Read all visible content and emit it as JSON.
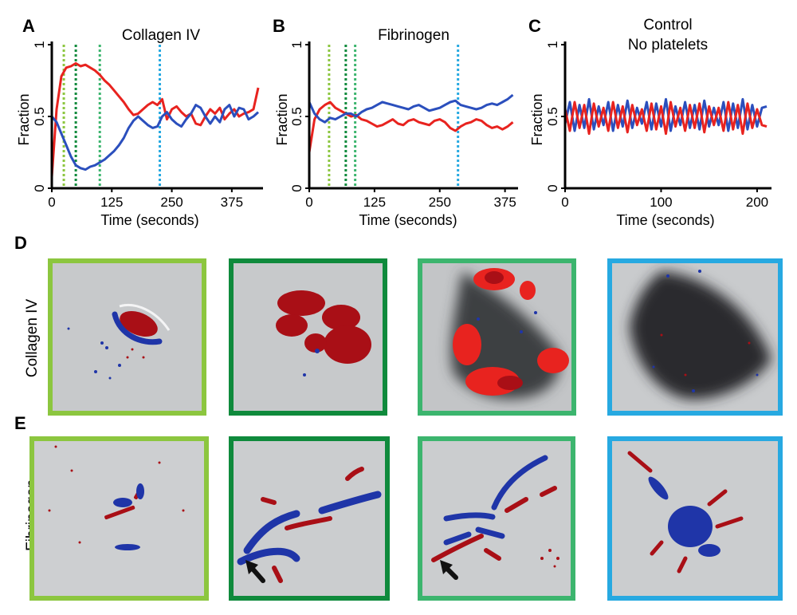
{
  "colors": {
    "series_red": "#e8231f",
    "series_blue": "#2b4fbd",
    "marker_1": "#8cc63f",
    "marker_2": "#0f8a3c",
    "marker_3": "#3cb56e",
    "marker_4": "#27a9e1",
    "overlay_red": "#a90f16",
    "overlay_blue": "#1f35a8"
  },
  "chart_data": [
    {
      "type": "line",
      "panel": "A",
      "title": "Collagen IV",
      "xlabel": "Time (seconds)",
      "ylabel": "Fraction",
      "xlim": [
        0,
        440
      ],
      "ylim": [
        0,
        1
      ],
      "xticks": [
        "0",
        "125",
        "250",
        "375"
      ],
      "xtick_values": [
        0,
        125,
        250,
        375
      ],
      "yticks": [
        "0",
        "0.5",
        "1"
      ],
      "ytick_values": [
        0,
        0.5,
        1
      ],
      "markers": [
        {
          "x": 25,
          "color": "#8cc63f"
        },
        {
          "x": 50,
          "color": "#0f8a3c"
        },
        {
          "x": 100,
          "color": "#3cb56e"
        },
        {
          "x": 225,
          "color": "#27a9e1"
        }
      ],
      "x": [
        0,
        10,
        20,
        30,
        40,
        50,
        60,
        70,
        80,
        90,
        100,
        110,
        120,
        130,
        140,
        150,
        160,
        170,
        180,
        190,
        200,
        210,
        220,
        230,
        240,
        250,
        260,
        270,
        280,
        290,
        300,
        310,
        320,
        330,
        340,
        350,
        360,
        370,
        380,
        390,
        400,
        410,
        420,
        430
      ],
      "series": [
        {
          "color": "#e8231f",
          "values": [
            0.08,
            0.55,
            0.78,
            0.84,
            0.85,
            0.87,
            0.85,
            0.86,
            0.84,
            0.82,
            0.79,
            0.75,
            0.72,
            0.68,
            0.64,
            0.6,
            0.55,
            0.51,
            0.52,
            0.55,
            0.58,
            0.6,
            0.58,
            0.62,
            0.48,
            0.55,
            0.57,
            0.53,
            0.5,
            0.52,
            0.45,
            0.44,
            0.5,
            0.55,
            0.52,
            0.56,
            0.48,
            0.52,
            0.55,
            0.5,
            0.52,
            0.53,
            0.55,
            0.7
          ]
        },
        {
          "color": "#2b4fbd",
          "values": [
            0.5,
            0.46,
            0.38,
            0.3,
            0.22,
            0.16,
            0.14,
            0.13,
            0.15,
            0.16,
            0.18,
            0.2,
            0.23,
            0.26,
            0.3,
            0.35,
            0.42,
            0.47,
            0.5,
            0.47,
            0.44,
            0.42,
            0.43,
            0.5,
            0.53,
            0.48,
            0.45,
            0.43,
            0.48,
            0.52,
            0.58,
            0.56,
            0.5,
            0.45,
            0.5,
            0.46,
            0.55,
            0.58,
            0.5,
            0.56,
            0.55,
            0.48,
            0.5,
            0.53
          ]
        }
      ]
    },
    {
      "type": "line",
      "panel": "B",
      "title": "Fibrinogen",
      "xlabel": "Time (seconds)",
      "ylabel": "Fraction",
      "xlim": [
        0,
        400
      ],
      "ylim": [
        0,
        1
      ],
      "xticks": [
        "0",
        "125",
        "250",
        "375"
      ],
      "xtick_values": [
        0,
        125,
        250,
        375
      ],
      "yticks": [
        "0",
        "0.5",
        "1"
      ],
      "ytick_values": [
        0,
        0.5,
        1
      ],
      "markers": [
        {
          "x": 38,
          "color": "#8cc63f"
        },
        {
          "x": 70,
          "color": "#0f8a3c"
        },
        {
          "x": 88,
          "color": "#3cb56e"
        },
        {
          "x": 285,
          "color": "#27a9e1"
        }
      ],
      "x": [
        0,
        10,
        20,
        30,
        40,
        50,
        60,
        70,
        80,
        90,
        100,
        110,
        120,
        130,
        140,
        150,
        160,
        170,
        180,
        190,
        200,
        210,
        220,
        230,
        240,
        250,
        260,
        270,
        280,
        290,
        300,
        310,
        320,
        330,
        340,
        350,
        360,
        370,
        380,
        390
      ],
      "series": [
        {
          "color": "#e8231f",
          "values": [
            0.25,
            0.48,
            0.55,
            0.58,
            0.6,
            0.56,
            0.54,
            0.52,
            0.5,
            0.51,
            0.48,
            0.47,
            0.45,
            0.43,
            0.44,
            0.46,
            0.48,
            0.45,
            0.44,
            0.47,
            0.48,
            0.46,
            0.45,
            0.44,
            0.47,
            0.48,
            0.46,
            0.42,
            0.4,
            0.43,
            0.45,
            0.46,
            0.48,
            0.47,
            0.44,
            0.42,
            0.43,
            0.41,
            0.43,
            0.46
          ]
        },
        {
          "color": "#2b4fbd",
          "values": [
            0.6,
            0.52,
            0.48,
            0.46,
            0.49,
            0.48,
            0.5,
            0.52,
            0.52,
            0.5,
            0.53,
            0.55,
            0.56,
            0.58,
            0.6,
            0.59,
            0.58,
            0.57,
            0.56,
            0.55,
            0.57,
            0.58,
            0.56,
            0.54,
            0.55,
            0.56,
            0.58,
            0.6,
            0.61,
            0.58,
            0.57,
            0.56,
            0.55,
            0.56,
            0.58,
            0.59,
            0.58,
            0.6,
            0.62,
            0.65
          ]
        }
      ]
    },
    {
      "type": "line",
      "panel": "C",
      "title": "Control",
      "subtitle": "No platelets",
      "xlabel": "Time (seconds)",
      "ylabel": "Fraction",
      "xlim": [
        0,
        215
      ],
      "ylim": [
        0,
        1
      ],
      "xticks": [
        "0",
        "100",
        "200"
      ],
      "xtick_values": [
        0,
        100,
        200
      ],
      "yticks": [
        "0",
        "0.5",
        "1"
      ],
      "ytick_values": [
        0,
        0.5,
        1
      ],
      "markers": [],
      "x": [
        0,
        5,
        10,
        15,
        20,
        25,
        30,
        35,
        40,
        45,
        50,
        55,
        60,
        65,
        70,
        75,
        80,
        85,
        90,
        95,
        100,
        105,
        110,
        115,
        120,
        125,
        130,
        135,
        140,
        145,
        150,
        155,
        160,
        165,
        170,
        175,
        180,
        185,
        190,
        195,
        200,
        205,
        210
      ],
      "series": [
        {
          "color": "#2b4fbd",
          "values": [
            0.45,
            0.6,
            0.4,
            0.58,
            0.42,
            0.62,
            0.41,
            0.57,
            0.44,
            0.6,
            0.4,
            0.58,
            0.43,
            0.61,
            0.42,
            0.56,
            0.45,
            0.6,
            0.41,
            0.59,
            0.43,
            0.62,
            0.4,
            0.57,
            0.44,
            0.6,
            0.42,
            0.58,
            0.41,
            0.61,
            0.43,
            0.56,
            0.44,
            0.6,
            0.4,
            0.59,
            0.42,
            0.62,
            0.41,
            0.58,
            0.43,
            0.56,
            0.57
          ]
        },
        {
          "color": "#e8231f",
          "values": [
            0.55,
            0.4,
            0.6,
            0.42,
            0.58,
            0.38,
            0.59,
            0.43,
            0.56,
            0.4,
            0.6,
            0.42,
            0.57,
            0.39,
            0.58,
            0.44,
            0.55,
            0.4,
            0.59,
            0.41,
            0.57,
            0.38,
            0.6,
            0.43,
            0.56,
            0.4,
            0.58,
            0.42,
            0.59,
            0.39,
            0.57,
            0.44,
            0.56,
            0.4,
            0.6,
            0.41,
            0.58,
            0.38,
            0.59,
            0.42,
            0.55,
            0.44,
            0.43
          ]
        }
      ]
    }
  ],
  "panels": {
    "D": {
      "letter": "D",
      "row_label": "Collagen IV",
      "frames": [
        "#8cc63f",
        "#0f8a3c",
        "#3cb56e",
        "#27a9e1"
      ]
    },
    "E": {
      "letter": "E",
      "row_label": "Fibrinogen",
      "frames": [
        "#8cc63f",
        "#0f8a3c",
        "#3cb56e",
        "#27a9e1"
      ]
    }
  }
}
